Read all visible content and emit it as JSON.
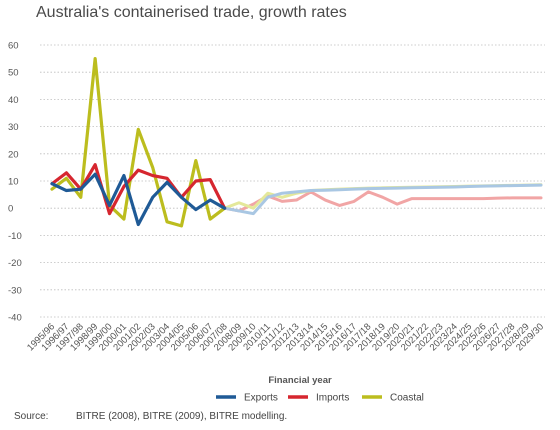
{
  "chart_data": {
    "type": "line",
    "title": "Australia's containerised trade, growth rates",
    "xlabel": "Financial year",
    "ylabel": "",
    "ylim": [
      -40,
      60
    ],
    "yticks": [
      60,
      50,
      40,
      30,
      20,
      10,
      0,
      -10,
      -20,
      -30,
      -40
    ],
    "grid": "horizontal",
    "legend_position": "bottom",
    "categories": [
      "1995/96",
      "1996/97",
      "1997/98",
      "1998/99",
      "1999/00",
      "2000/01",
      "2001/02",
      "2002/03",
      "2003/04",
      "2004/05",
      "2005/06",
      "2006/07",
      "2007/08",
      "2008/09",
      "2009/10",
      "2010/11",
      "2011/12",
      "2012/13",
      "2013/14",
      "2014/15",
      "2015/16",
      "2016/17",
      "2017/18",
      "2018/19",
      "2019/20",
      "2020/21",
      "2021/22",
      "2022/23",
      "2023/24",
      "2024/25",
      "2025/26",
      "2026/27",
      "2027/28",
      "2028/29",
      "2029/30"
    ],
    "series": [
      {
        "name": "Exports",
        "color": "#1f5a96",
        "values": [
          9,
          6.5,
          7,
          12.5,
          1,
          12,
          -6,
          4,
          9.5,
          4,
          -0.5,
          3,
          0,
          null,
          null,
          null,
          null,
          null,
          null,
          null,
          null,
          null,
          null,
          null,
          null,
          null,
          null,
          null,
          null,
          null,
          null,
          null,
          null,
          null,
          null
        ]
      },
      {
        "name": "Imports",
        "color": "#d6262f",
        "values": [
          9,
          13,
          7,
          16,
          -2,
          8,
          14,
          12,
          11,
          4,
          10,
          10.5,
          0,
          null,
          null,
          null,
          null,
          null,
          null,
          null,
          null,
          null,
          null,
          null,
          null,
          null,
          null,
          null,
          null,
          null,
          null,
          null,
          null,
          null,
          null
        ]
      },
      {
        "name": "Coastal",
        "color": "#bcbd1e",
        "values": [
          7,
          11,
          4,
          55,
          1,
          -4,
          29,
          15,
          -5,
          -6.5,
          17.5,
          -4,
          0,
          null,
          null,
          null,
          null,
          null,
          null,
          null,
          null,
          null,
          null,
          null,
          null,
          null,
          null,
          null,
          null,
          null,
          null,
          null,
          null,
          null,
          null
        ]
      },
      {
        "name": "",
        "color": "#f1a5a5",
        "values": [
          null,
          null,
          null,
          null,
          null,
          null,
          null,
          null,
          null,
          null,
          null,
          null,
          0,
          -1,
          1.5,
          4.5,
          2.5,
          3,
          6,
          3,
          1,
          2.5,
          6,
          4,
          1.5,
          3.5,
          3.5,
          3.5,
          3.5,
          3.5,
          3.5,
          3.7,
          3.8,
          3.8,
          3.8
        ]
      },
      {
        "name": "",
        "color": "#e4e89a",
        "values": [
          null,
          null,
          null,
          null,
          null,
          null,
          null,
          null,
          null,
          null,
          null,
          null,
          0,
          2,
          0,
          5.5,
          4,
          5.5,
          6.5,
          6.8,
          7,
          7.2,
          7.4,
          7.5,
          7.6,
          7.7,
          7.8,
          7.9,
          8,
          8.1,
          8.2,
          8.3,
          8.4,
          8.5,
          8.6
        ]
      },
      {
        "name": "",
        "color": "#a9c7e3",
        "values": [
          null,
          null,
          null,
          null,
          null,
          null,
          null,
          null,
          null,
          null,
          null,
          null,
          0,
          -1,
          -2,
          4,
          5.5,
          6,
          6.5,
          6.6,
          6.8,
          7,
          7.2,
          7.3,
          7.4,
          7.5,
          7.6,
          7.7,
          7.8,
          8,
          8.1,
          8.2,
          8.3,
          8.4,
          8.5
        ]
      }
    ],
    "legend": [
      "Exports",
      "Imports",
      "Coastal"
    ]
  },
  "source": {
    "label": "Source:",
    "text": "BITRE (2008), BITRE (2009), BITRE modelling."
  }
}
